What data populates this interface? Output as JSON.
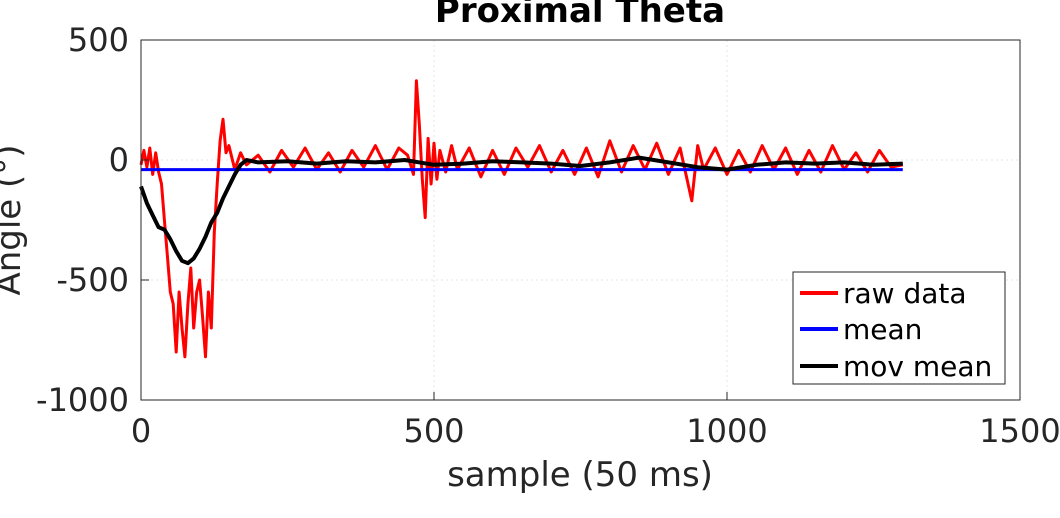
{
  "chart_data": {
    "type": "line",
    "title": "Proximal Theta",
    "xlabel": "sample (50 ms)",
    "ylabel": "Angle (°)",
    "xlim": [
      0,
      1500
    ],
    "ylim": [
      -1000,
      500
    ],
    "xticks": [
      0,
      500,
      1000,
      1500
    ],
    "yticks": [
      -1000,
      -500,
      0,
      500
    ],
    "xtick_labels": [
      "0",
      "500",
      "1000",
      "1500"
    ],
    "ytick_labels": [
      "-1000",
      "-500",
      "0",
      "500"
    ],
    "grid": true,
    "legend_position": "bottom-right",
    "series": [
      {
        "name": "raw data",
        "color": "#ff0000",
        "x": [
          0,
          5,
          10,
          15,
          20,
          25,
          30,
          35,
          40,
          45,
          50,
          55,
          60,
          65,
          70,
          75,
          80,
          85,
          90,
          95,
          100,
          105,
          110,
          115,
          120,
          125,
          130,
          135,
          140,
          145,
          150,
          160,
          170,
          180,
          200,
          220,
          240,
          260,
          280,
          300,
          320,
          340,
          360,
          380,
          400,
          420,
          440,
          455,
          465,
          470,
          475,
          480,
          485,
          490,
          495,
          500,
          505,
          510,
          520,
          530,
          540,
          560,
          580,
          600,
          620,
          640,
          660,
          680,
          700,
          720,
          740,
          760,
          780,
          800,
          820,
          840,
          860,
          880,
          900,
          920,
          940,
          950,
          960,
          980,
          1000,
          1020,
          1040,
          1060,
          1080,
          1100,
          1120,
          1140,
          1160,
          1180,
          1200,
          1220,
          1240,
          1260,
          1280,
          1300
        ],
        "y": [
          -20,
          40,
          -30,
          50,
          -60,
          30,
          -50,
          -100,
          -250,
          -400,
          -550,
          -600,
          -800,
          -550,
          -700,
          -820,
          -600,
          -450,
          -700,
          -550,
          -500,
          -650,
          -820,
          -550,
          -700,
          -300,
          -100,
          80,
          170,
          30,
          60,
          -40,
          30,
          -20,
          20,
          -50,
          40,
          -30,
          50,
          -40,
          30,
          -50,
          40,
          -30,
          60,
          -40,
          50,
          20,
          -60,
          330,
          150,
          -80,
          -240,
          90,
          -100,
          70,
          -80,
          40,
          -50,
          60,
          -40,
          50,
          -70,
          40,
          -60,
          50,
          -30,
          60,
          -50,
          40,
          -60,
          50,
          -70,
          80,
          -50,
          60,
          -40,
          70,
          -60,
          50,
          -170,
          60,
          -40,
          50,
          -60,
          40,
          -50,
          60,
          -40,
          50,
          -60,
          40,
          -50,
          60,
          -40,
          30,
          -50,
          40,
          -30,
          -20
        ]
      },
      {
        "name": "mean",
        "color": "#0000ff",
        "x": [
          0,
          1300
        ],
        "y": [
          -40,
          -40
        ]
      },
      {
        "name": "mov mean",
        "color": "#000000",
        "x": [
          0,
          10,
          20,
          30,
          40,
          50,
          60,
          70,
          80,
          90,
          100,
          110,
          120,
          130,
          140,
          150,
          160,
          170,
          180,
          200,
          250,
          300,
          350,
          400,
          450,
          500,
          550,
          600,
          650,
          700,
          750,
          800,
          850,
          900,
          950,
          1000,
          1050,
          1100,
          1150,
          1200,
          1250,
          1300
        ],
        "y": [
          -110,
          -180,
          -230,
          -280,
          -290,
          -330,
          -380,
          -420,
          -430,
          -410,
          -370,
          -320,
          -260,
          -220,
          -160,
          -110,
          -60,
          -20,
          0,
          -10,
          -5,
          -15,
          -5,
          -10,
          0,
          -20,
          -15,
          -5,
          -10,
          -15,
          -25,
          -10,
          10,
          -10,
          -30,
          -40,
          -20,
          -10,
          -15,
          -10,
          -20,
          -15
        ]
      }
    ]
  }
}
